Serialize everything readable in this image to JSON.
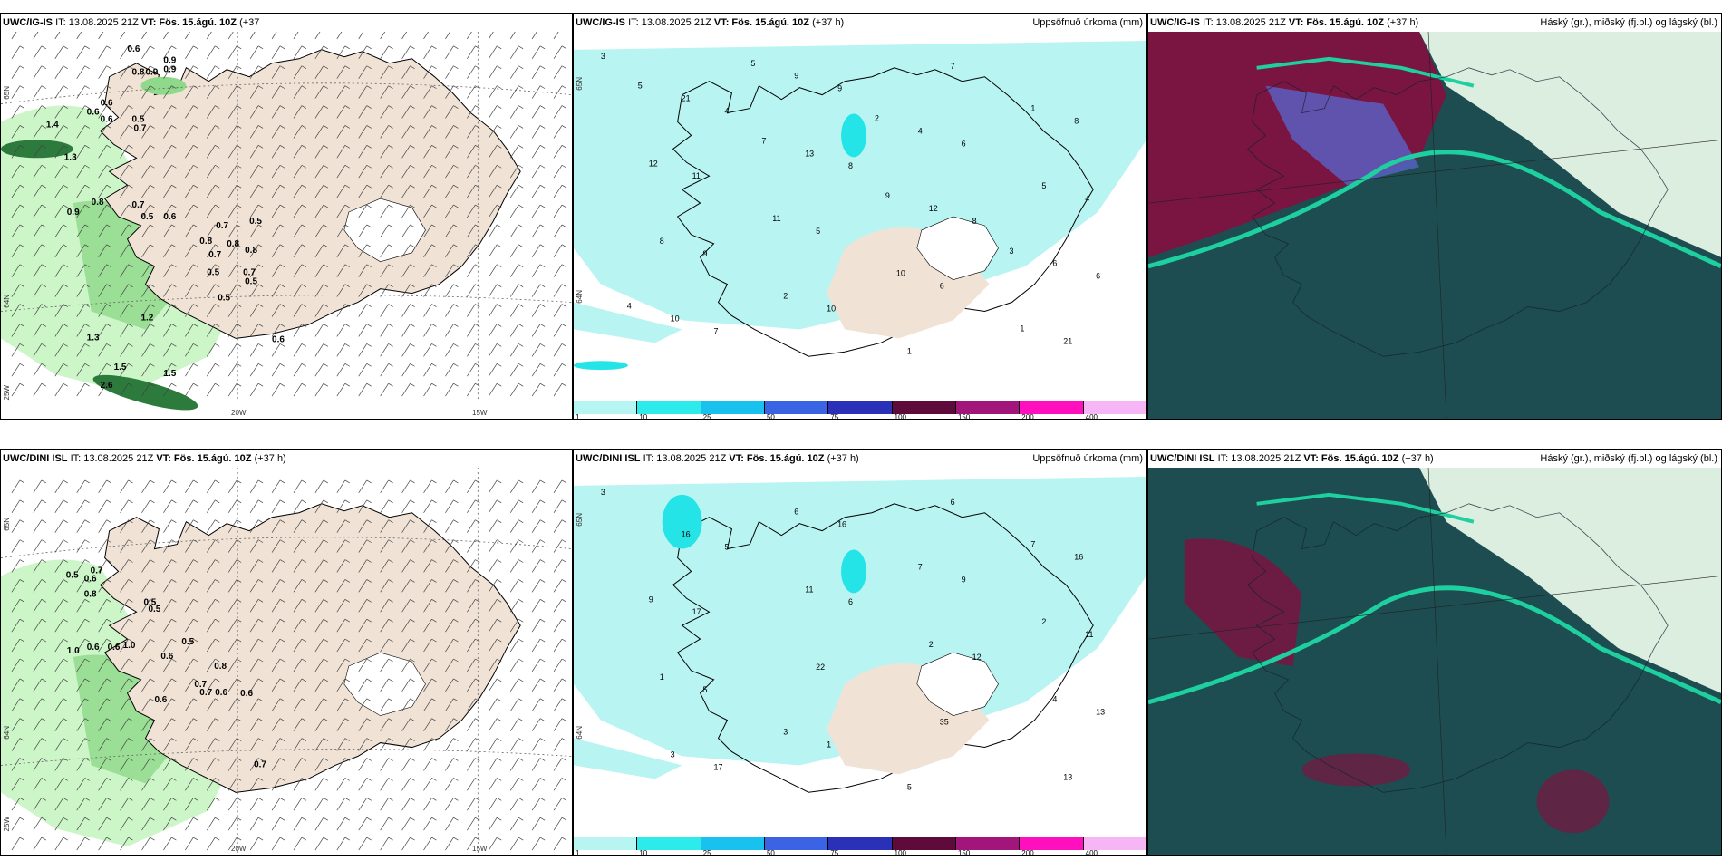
{
  "colors": {
    "land": "#f0e3d6",
    "precip_light": "#b8f4f2",
    "precip_mid": "#25e4e8",
    "wind_green_light": "#ccf5c8",
    "wind_green_mid": "#8fd98a",
    "wind_green_dark": "#2c7a3c",
    "cloud_high": "#7a1440",
    "cloud_mid": "#5a63c8",
    "cloud_low": "#1d4d50",
    "cloud_edge": "#1ecf9f"
  },
  "rows": [
    {
      "model": "UWC/IG-IS",
      "panels": [
        {
          "type": "wind",
          "header_model": "UWC/IG-IS",
          "header_it": "IT: 13.08.2025 21Z",
          "header_vt": "VT: Fös. 15.ágú. 10Z",
          "header_lead": "(+37",
          "header_lead2": "h)",
          "header_right": "",
          "lat_labels": [
            "65N",
            "64N",
            "25W"
          ],
          "lon_labels": [
            "20W",
            "15W"
          ],
          "values": [
            "0.6",
            "0.9",
            "0.8",
            "0.9",
            "0.6",
            "0.6",
            "0.6",
            "0.9",
            "0.5",
            "0.7",
            "1.4",
            "1.3",
            "0.7",
            "0.8",
            "0.9",
            "0.6",
            "0.5",
            "0.7",
            "0.8",
            "0.8",
            "0.7",
            "0.8",
            "0.5",
            "0.7",
            "0.5",
            "0.5",
            "1.2",
            "1.3",
            "1.5",
            "1.5",
            "2.6",
            "0.6",
            "0.5"
          ]
        },
        {
          "type": "precip",
          "header_model": "UWC/IG-IS",
          "header_it": "IT: 13.08.2025 21Z",
          "header_vt": "VT: Fös. 15.ágú. 10Z",
          "header_lead": "(+37 h)",
          "header_right": "Uppsöfnuð úrkoma (mm)",
          "lat_labels": [
            "65N",
            "64N"
          ],
          "values": [
            "3",
            "4",
            "8",
            "8",
            "6",
            "7",
            "9",
            "6",
            "4",
            "9",
            "10",
            "7",
            "8",
            "11",
            "5",
            "6",
            "21",
            "21",
            "13",
            "12",
            "6",
            "10",
            "9",
            "4",
            "5",
            "8",
            "2",
            "1",
            "1",
            "12",
            "11",
            "10",
            "1",
            "5",
            "7",
            "9",
            "3",
            "4",
            "5",
            "2"
          ],
          "colorbar": [
            "1",
            "10",
            "25",
            "50",
            "75",
            "100",
            "150",
            "200",
            "400"
          ]
        },
        {
          "type": "cloud",
          "header_model": "UWC/IG-IS",
          "header_it": "IT: 13.08.2025 21Z",
          "header_vt": "VT: Fös. 15.ágú. 10Z",
          "header_lead": "(+37 h)",
          "header_right": "Háský (gr.), miðský (fj.bl.) og lágský (bl.)"
        }
      ]
    },
    {
      "model": "UWC/DINI ISL",
      "panels": [
        {
          "type": "wind",
          "header_model": "UWC/DINI ISL",
          "header_it": "IT: 13.08.2025 21Z",
          "header_vt": "VT: Fös. 15.ágú. 10Z",
          "header_lead": "(+37 h)",
          "header_lead2": "",
          "header_right": "",
          "lat_labels": [
            "65N",
            "64N",
            "25W"
          ],
          "lon_labels": [
            "20W",
            "15W"
          ],
          "values": [
            "0.5",
            "0.6",
            "0.7",
            "0.8",
            "0.5",
            "0.5",
            "0.5",
            "1.0",
            "0.6",
            "0.6",
            "1.0",
            "0.6",
            "0.8",
            "0.7",
            "0.7",
            "0.6",
            "0.6",
            "0.6",
            "0.7"
          ]
        },
        {
          "type": "precip",
          "header_model": "UWC/DINI ISL",
          "header_it": "IT: 13.08.2025 21Z",
          "header_vt": "VT: Fös. 15.ágú. 10Z",
          "header_lead": "(+37 h)",
          "header_right": "Uppsöfnuð úrkoma (mm)",
          "lat_labels": [
            "65N",
            "64N"
          ],
          "values": [
            "3",
            "5",
            "6",
            "12",
            "13",
            "17",
            "16",
            "9",
            "11",
            "5",
            "1",
            "6",
            "16",
            "17",
            "22",
            "35",
            "13",
            "16",
            "11",
            "2",
            "4",
            "3",
            "6",
            "7",
            "2",
            "1",
            "3",
            "5",
            "7",
            "9"
          ],
          "colorbar": [
            "1",
            "10",
            "25",
            "50",
            "75",
            "100",
            "150",
            "200",
            "400"
          ]
        },
        {
          "type": "cloud",
          "header_model": "UWC/DINI ISL",
          "header_it": "IT: 13.08.2025 21Z",
          "header_vt": "VT: Fös. 15.ágú. 10Z",
          "header_lead": "(+37 h)",
          "header_right": "Háský (gr.), miðský (fj.bl.) og lágský (bl.)"
        }
      ]
    }
  ],
  "colorbar_colors": [
    "#b7f5f3",
    "#2cebea",
    "#19c2ee",
    "#3a64e4",
    "#2b30b8",
    "#5e0a3a",
    "#a2167c",
    "#ff0fbe",
    "#f6b6f6"
  ]
}
